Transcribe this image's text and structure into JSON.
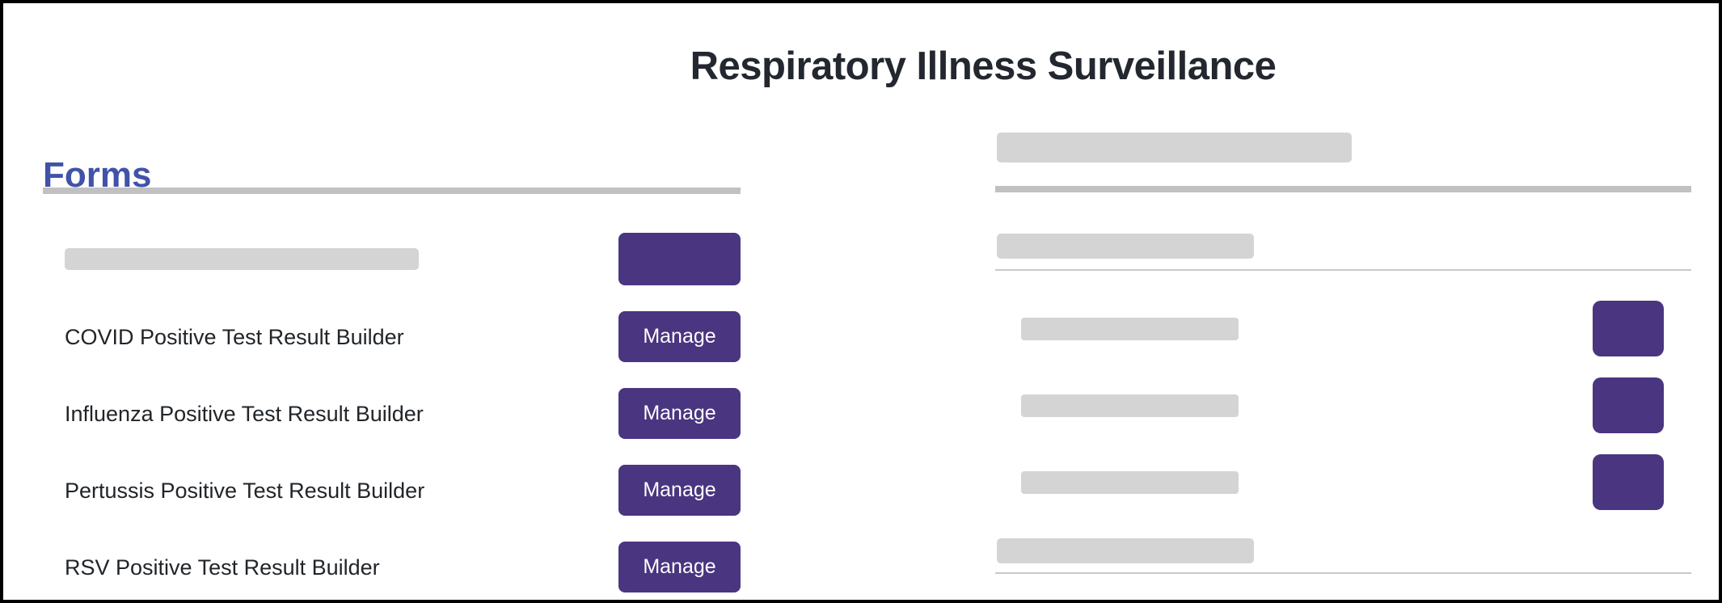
{
  "page": {
    "title": "Respiratory Illness Surveillance"
  },
  "forms": {
    "heading": "Forms",
    "rows": [
      {
        "type": "skeleton-row"
      },
      {
        "label": "COVID Positive Test Result Builder",
        "button": "Manage"
      },
      {
        "label": "Influenza Positive Test Result Builder",
        "button": "Manage"
      },
      {
        "label": "Pertussis Positive Test Result Builder",
        "button": "Manage"
      },
      {
        "label": "RSV Positive Test Result Builder",
        "button": "Manage"
      }
    ]
  },
  "right_panel": {
    "state": "loading-skeleton",
    "heading_placeholder": true,
    "subheading_placeholders": 2,
    "item_rows": 3
  },
  "colors": {
    "accent_purple": "#4a3580",
    "heading_indigo": "#4152a8",
    "skeleton_gray": "#d4d4d4",
    "divider_gray": "#c1c1c1",
    "thin_line_gray": "#c9c9c9",
    "title_text": "#23272f",
    "body_text": "#212529"
  }
}
